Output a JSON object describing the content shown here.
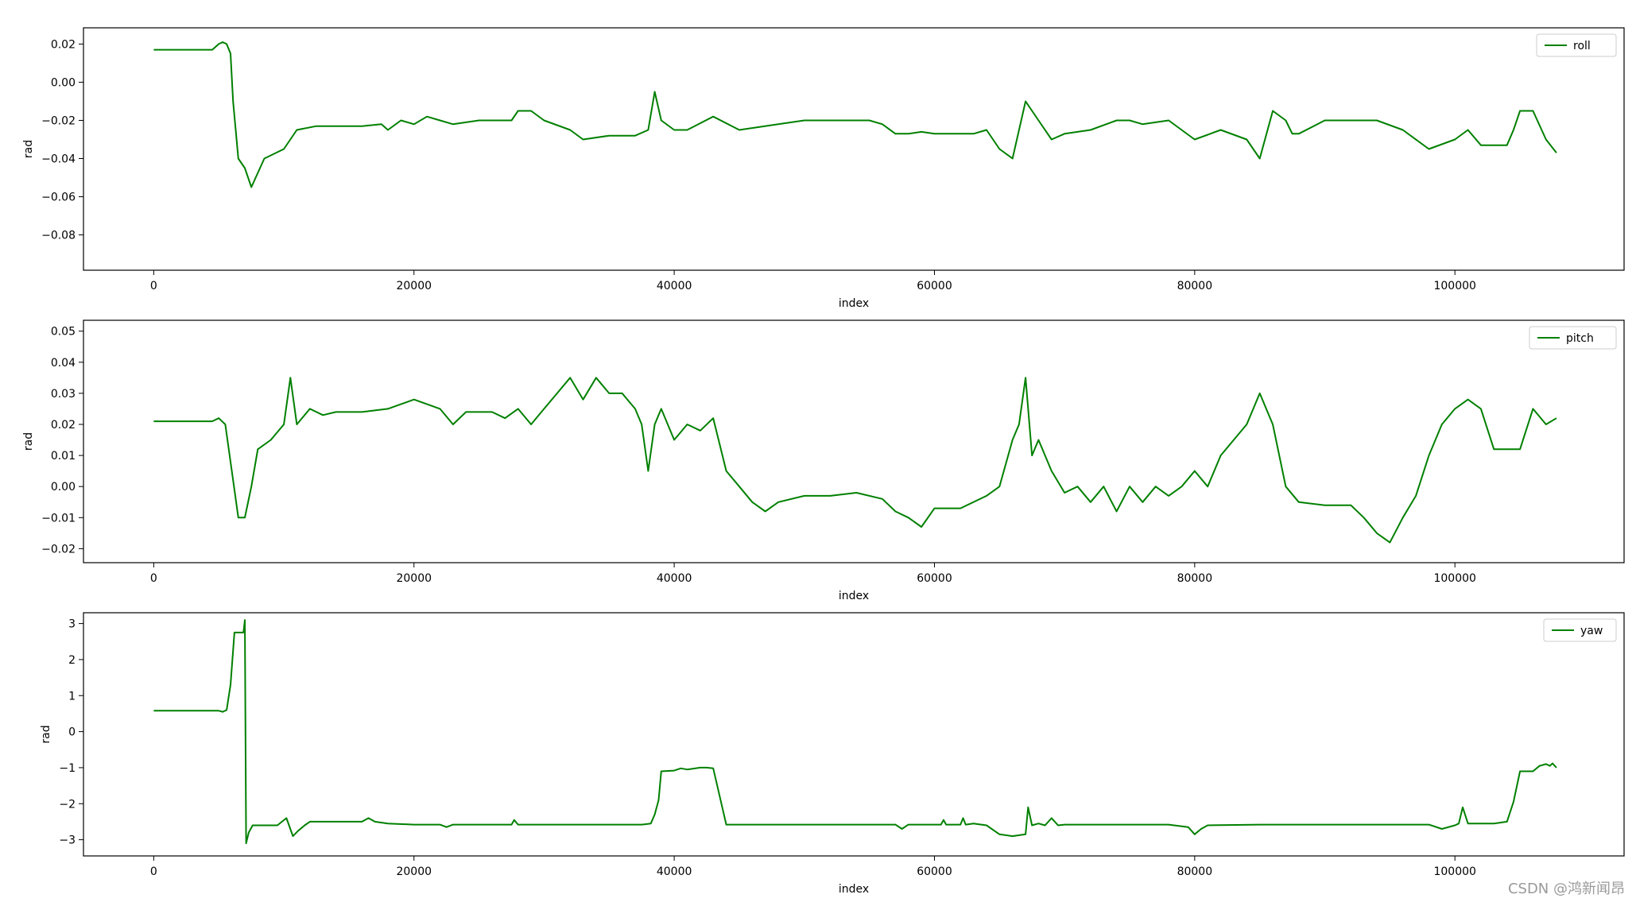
{
  "watermark": "CSDN @鸿新闻昂",
  "line_color": "#008000",
  "chart_data": [
    {
      "type": "line",
      "xlabel": "index",
      "ylabel": "rad",
      "xlim": [
        -5400,
        113000
      ],
      "ylim": [
        -0.0985,
        0.0285
      ],
      "xticks": [
        0,
        20000,
        40000,
        60000,
        80000,
        100000
      ],
      "yticks": [
        -0.08,
        -0.06,
        -0.04,
        -0.02,
        0.0,
        0.02
      ],
      "ytick_labels": [
        "−0.08",
        "−0.06",
        "−0.04",
        "−0.02",
        "0.00",
        "0.02"
      ],
      "grid": false,
      "legend_position": "top-right",
      "series": [
        {
          "name": "roll",
          "color": "#008000",
          "x": [
            0,
            2000,
            4500,
            5000,
            5300,
            5600,
            5900,
            6100,
            6500,
            7000,
            7500,
            8500,
            10000,
            11000,
            12500,
            14000,
            16000,
            17500,
            18000,
            19000,
            20000,
            21000,
            22000,
            23000,
            25000,
            27500,
            28000,
            29000,
            30000,
            32000,
            33000,
            35000,
            37000,
            38000,
            38500,
            39000,
            40000,
            41000,
            43000,
            45000,
            48000,
            50000,
            53000,
            55000,
            56000,
            57000,
            58000,
            59000,
            60000,
            62000,
            63000,
            64000,
            65000,
            66000,
            67000,
            68000,
            69000,
            70000,
            72000,
            74000,
            75000,
            76000,
            78000,
            80000,
            82000,
            84000,
            85000,
            86000,
            87000,
            87500,
            88000,
            90000,
            92000,
            94000,
            96000,
            98000,
            100000,
            101000,
            102000,
            104000,
            104500,
            105000,
            106000,
            107000,
            107800
          ],
          "y": [
            0.017,
            0.017,
            0.017,
            0.02,
            0.021,
            0.02,
            0.015,
            -0.01,
            -0.04,
            -0.045,
            -0.055,
            -0.04,
            -0.035,
            -0.025,
            -0.023,
            -0.023,
            -0.023,
            -0.022,
            -0.025,
            -0.02,
            -0.022,
            -0.018,
            -0.02,
            -0.022,
            -0.02,
            -0.02,
            -0.015,
            -0.015,
            -0.02,
            -0.025,
            -0.03,
            -0.028,
            -0.028,
            -0.025,
            -0.005,
            -0.02,
            -0.025,
            -0.025,
            -0.018,
            -0.025,
            -0.022,
            -0.02,
            -0.02,
            -0.02,
            -0.022,
            -0.027,
            -0.027,
            -0.026,
            -0.027,
            -0.027,
            -0.027,
            -0.025,
            -0.035,
            -0.04,
            -0.01,
            -0.02,
            -0.03,
            -0.027,
            -0.025,
            -0.02,
            -0.02,
            -0.022,
            -0.02,
            -0.03,
            -0.025,
            -0.03,
            -0.04,
            -0.015,
            -0.02,
            -0.027,
            -0.027,
            -0.02,
            -0.02,
            -0.02,
            -0.025,
            -0.035,
            -0.03,
            -0.025,
            -0.033,
            -0.033,
            -0.025,
            -0.015,
            -0.015,
            -0.03,
            -0.037
          ]
        }
      ]
    },
    {
      "type": "line",
      "xlabel": "index",
      "ylabel": "rad",
      "xlim": [
        -5400,
        113000
      ],
      "ylim": [
        -0.0245,
        0.0535
      ],
      "xticks": [
        0,
        20000,
        40000,
        60000,
        80000,
        100000
      ],
      "yticks": [
        -0.02,
        -0.01,
        0.0,
        0.01,
        0.02,
        0.03,
        0.04,
        0.05
      ],
      "ytick_labels": [
        "−0.02",
        "−0.01",
        "0.00",
        "0.01",
        "0.02",
        "0.03",
        "0.04",
        "0.05"
      ],
      "grid": false,
      "legend_position": "top-right",
      "series": [
        {
          "name": "pitch",
          "color": "#008000",
          "x": [
            0,
            2000,
            4500,
            5000,
            5500,
            6000,
            6500,
            7000,
            7500,
            8000,
            9000,
            10000,
            10500,
            11000,
            12000,
            13000,
            14000,
            16000,
            18000,
            20000,
            22000,
            23000,
            24000,
            26000,
            27000,
            28000,
            29000,
            30000,
            31000,
            32000,
            33000,
            34000,
            35000,
            36000,
            37000,
            37500,
            38000,
            38500,
            39000,
            40000,
            41000,
            42000,
            43000,
            44000,
            45000,
            46000,
            47000,
            48000,
            50000,
            52000,
            54000,
            56000,
            57000,
            58000,
            59000,
            60000,
            62000,
            64000,
            65000,
            66000,
            66500,
            67000,
            67500,
            68000,
            69000,
            70000,
            71000,
            72000,
            73000,
            74000,
            75000,
            76000,
            77000,
            78000,
            79000,
            80000,
            81000,
            82000,
            83000,
            84000,
            85000,
            86000,
            87000,
            88000,
            90000,
            92000,
            93000,
            94000,
            95000,
            96000,
            97000,
            98000,
            99000,
            100000,
            101000,
            102000,
            103000,
            104000,
            105000,
            106000,
            107000,
            107800
          ],
          "y": [
            0.021,
            0.021,
            0.021,
            0.022,
            0.02,
            0.005,
            -0.01,
            -0.01,
            0.0,
            0.012,
            0.015,
            0.02,
            0.035,
            0.02,
            0.025,
            0.023,
            0.024,
            0.024,
            0.025,
            0.028,
            0.025,
            0.02,
            0.024,
            0.024,
            0.022,
            0.025,
            0.02,
            0.025,
            0.03,
            0.035,
            0.028,
            0.035,
            0.03,
            0.03,
            0.025,
            0.02,
            0.005,
            0.02,
            0.025,
            0.015,
            0.02,
            0.018,
            0.022,
            0.005,
            0.0,
            -0.005,
            -0.008,
            -0.005,
            -0.003,
            -0.003,
            -0.002,
            -0.004,
            -0.008,
            -0.01,
            -0.013,
            -0.007,
            -0.007,
            -0.003,
            0.0,
            0.015,
            0.02,
            0.035,
            0.01,
            0.015,
            0.005,
            -0.002,
            0.0,
            -0.005,
            0.0,
            -0.008,
            0.0,
            -0.005,
            0.0,
            -0.003,
            0.0,
            0.005,
            0.0,
            0.01,
            0.015,
            0.02,
            0.03,
            0.02,
            0.0,
            -0.005,
            -0.006,
            -0.006,
            -0.01,
            -0.015,
            -0.018,
            -0.01,
            -0.003,
            0.01,
            0.02,
            0.025,
            0.028,
            0.025,
            0.012,
            0.012,
            0.012,
            0.025,
            0.02,
            0.022
          ]
        }
      ]
    },
    {
      "type": "line",
      "xlabel": "index",
      "ylabel": "rad",
      "xlim": [
        -5400,
        113000
      ],
      "ylim": [
        -3.45,
        3.3
      ],
      "xticks": [
        0,
        20000,
        40000,
        60000,
        80000,
        100000
      ],
      "yticks": [
        -3,
        -2,
        -1,
        0,
        1,
        2,
        3
      ],
      "ytick_labels": [
        "−3",
        "−2",
        "−1",
        "0",
        "1",
        "2",
        "3"
      ],
      "grid": false,
      "legend_position": "top-right",
      "series": [
        {
          "name": "yaw",
          "color": "#008000",
          "x": [
            0,
            5000,
            5300,
            5600,
            5900,
            6200,
            6500,
            6900,
            7000,
            7050,
            7100,
            7300,
            7600,
            8000,
            9000,
            9500,
            10200,
            10700,
            11100,
            11600,
            12000,
            12700,
            14000,
            16000,
            16500,
            17000,
            18000,
            20000,
            22000,
            22500,
            23000,
            26000,
            27500,
            27700,
            28000,
            30000,
            35000,
            37500,
            38200,
            38500,
            38800,
            39000,
            40000,
            40500,
            41000,
            42000,
            42500,
            43000,
            43500,
            44000,
            45000,
            50000,
            55000,
            57000,
            57500,
            58000,
            60000,
            60500,
            60700,
            60900,
            62000,
            62200,
            62400,
            63000,
            64000,
            65000,
            66000,
            67000,
            67200,
            67500,
            68000,
            68500,
            69000,
            69500,
            70000,
            75000,
            78000,
            79500,
            80000,
            80500,
            81000,
            85000,
            90000,
            95000,
            98000,
            99000,
            100000,
            100300,
            100600,
            101000,
            101500,
            102000,
            103000,
            104000,
            104500,
            105000,
            106000,
            106500,
            107000,
            107300,
            107500,
            107800
          ],
          "y": [
            0.58,
            0.58,
            0.55,
            0.6,
            1.3,
            2.75,
            2.75,
            2.75,
            3.1,
            0.0,
            -3.1,
            -2.8,
            -2.6,
            -2.6,
            -2.6,
            -2.6,
            -2.4,
            -2.9,
            -2.75,
            -2.6,
            -2.5,
            -2.5,
            -2.5,
            -2.5,
            -2.4,
            -2.5,
            -2.55,
            -2.58,
            -2.58,
            -2.65,
            -2.58,
            -2.58,
            -2.58,
            -2.45,
            -2.58,
            -2.58,
            -2.58,
            -2.58,
            -2.55,
            -2.3,
            -1.9,
            -1.1,
            -1.08,
            -1.02,
            -1.05,
            -1.0,
            -1.0,
            -1.02,
            -1.8,
            -2.58,
            -2.58,
            -2.58,
            -2.58,
            -2.58,
            -2.7,
            -2.58,
            -2.58,
            -2.58,
            -2.45,
            -2.58,
            -2.58,
            -2.4,
            -2.58,
            -2.55,
            -2.6,
            -2.85,
            -2.9,
            -2.85,
            -2.1,
            -2.6,
            -2.55,
            -2.6,
            -2.4,
            -2.6,
            -2.58,
            -2.58,
            -2.58,
            -2.65,
            -2.85,
            -2.7,
            -2.6,
            -2.58,
            -2.58,
            -2.58,
            -2.58,
            -2.7,
            -2.6,
            -2.55,
            -2.1,
            -2.55,
            -2.55,
            -2.55,
            -2.55,
            -2.5,
            -1.95,
            -1.1,
            -1.1,
            -0.95,
            -0.9,
            -0.95,
            -0.88,
            -1.0
          ]
        }
      ]
    }
  ]
}
